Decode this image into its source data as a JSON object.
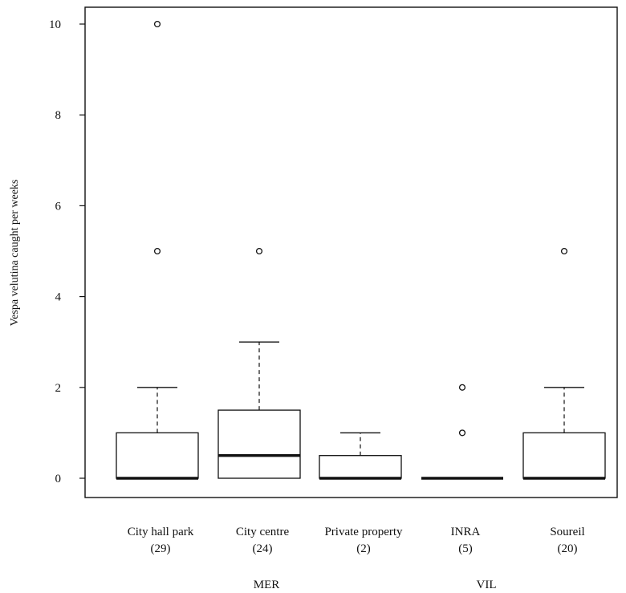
{
  "chart_data": {
    "type": "boxplot",
    "title": "",
    "xlabel": "",
    "ylabel": "Vespa velutina caught per weeks",
    "ylim": [
      -0.4,
      10.4
    ],
    "yticks": [
      "0",
      "2",
      "4",
      "6",
      "8",
      "10"
    ],
    "categories": [
      {
        "name": "City hall park",
        "n": "(29)",
        "min": 0,
        "q1": 0,
        "median": 0,
        "q3": 1,
        "max": 2,
        "outliers": [
          5,
          10
        ]
      },
      {
        "name": "City centre",
        "n": "(24)",
        "min": 0,
        "q1": 0,
        "median": 0.5,
        "q3": 1.5,
        "max": 3,
        "outliers": [
          5
        ]
      },
      {
        "name": "Private property",
        "n": "(2)",
        "min": 0,
        "q1": 0,
        "median": 0,
        "q3": 0.5,
        "max": 1,
        "outliers": []
      },
      {
        "name": "INRA",
        "n": "(5)",
        "min": 0,
        "q1": 0,
        "median": 0,
        "q3": 0,
        "max": 0,
        "outliers": [
          1,
          2
        ]
      },
      {
        "name": "Soureil",
        "n": "(20)",
        "min": 0,
        "q1": 0,
        "median": 0,
        "q3": 1,
        "max": 2,
        "outliers": [
          5
        ]
      }
    ],
    "groups": [
      {
        "label": "MER",
        "categories": [
          "City hall park",
          "City centre",
          "Private property"
        ]
      },
      {
        "label": "VIL",
        "categories": [
          "INRA",
          "Soureil"
        ]
      }
    ],
    "grid": false,
    "legend": "none"
  }
}
